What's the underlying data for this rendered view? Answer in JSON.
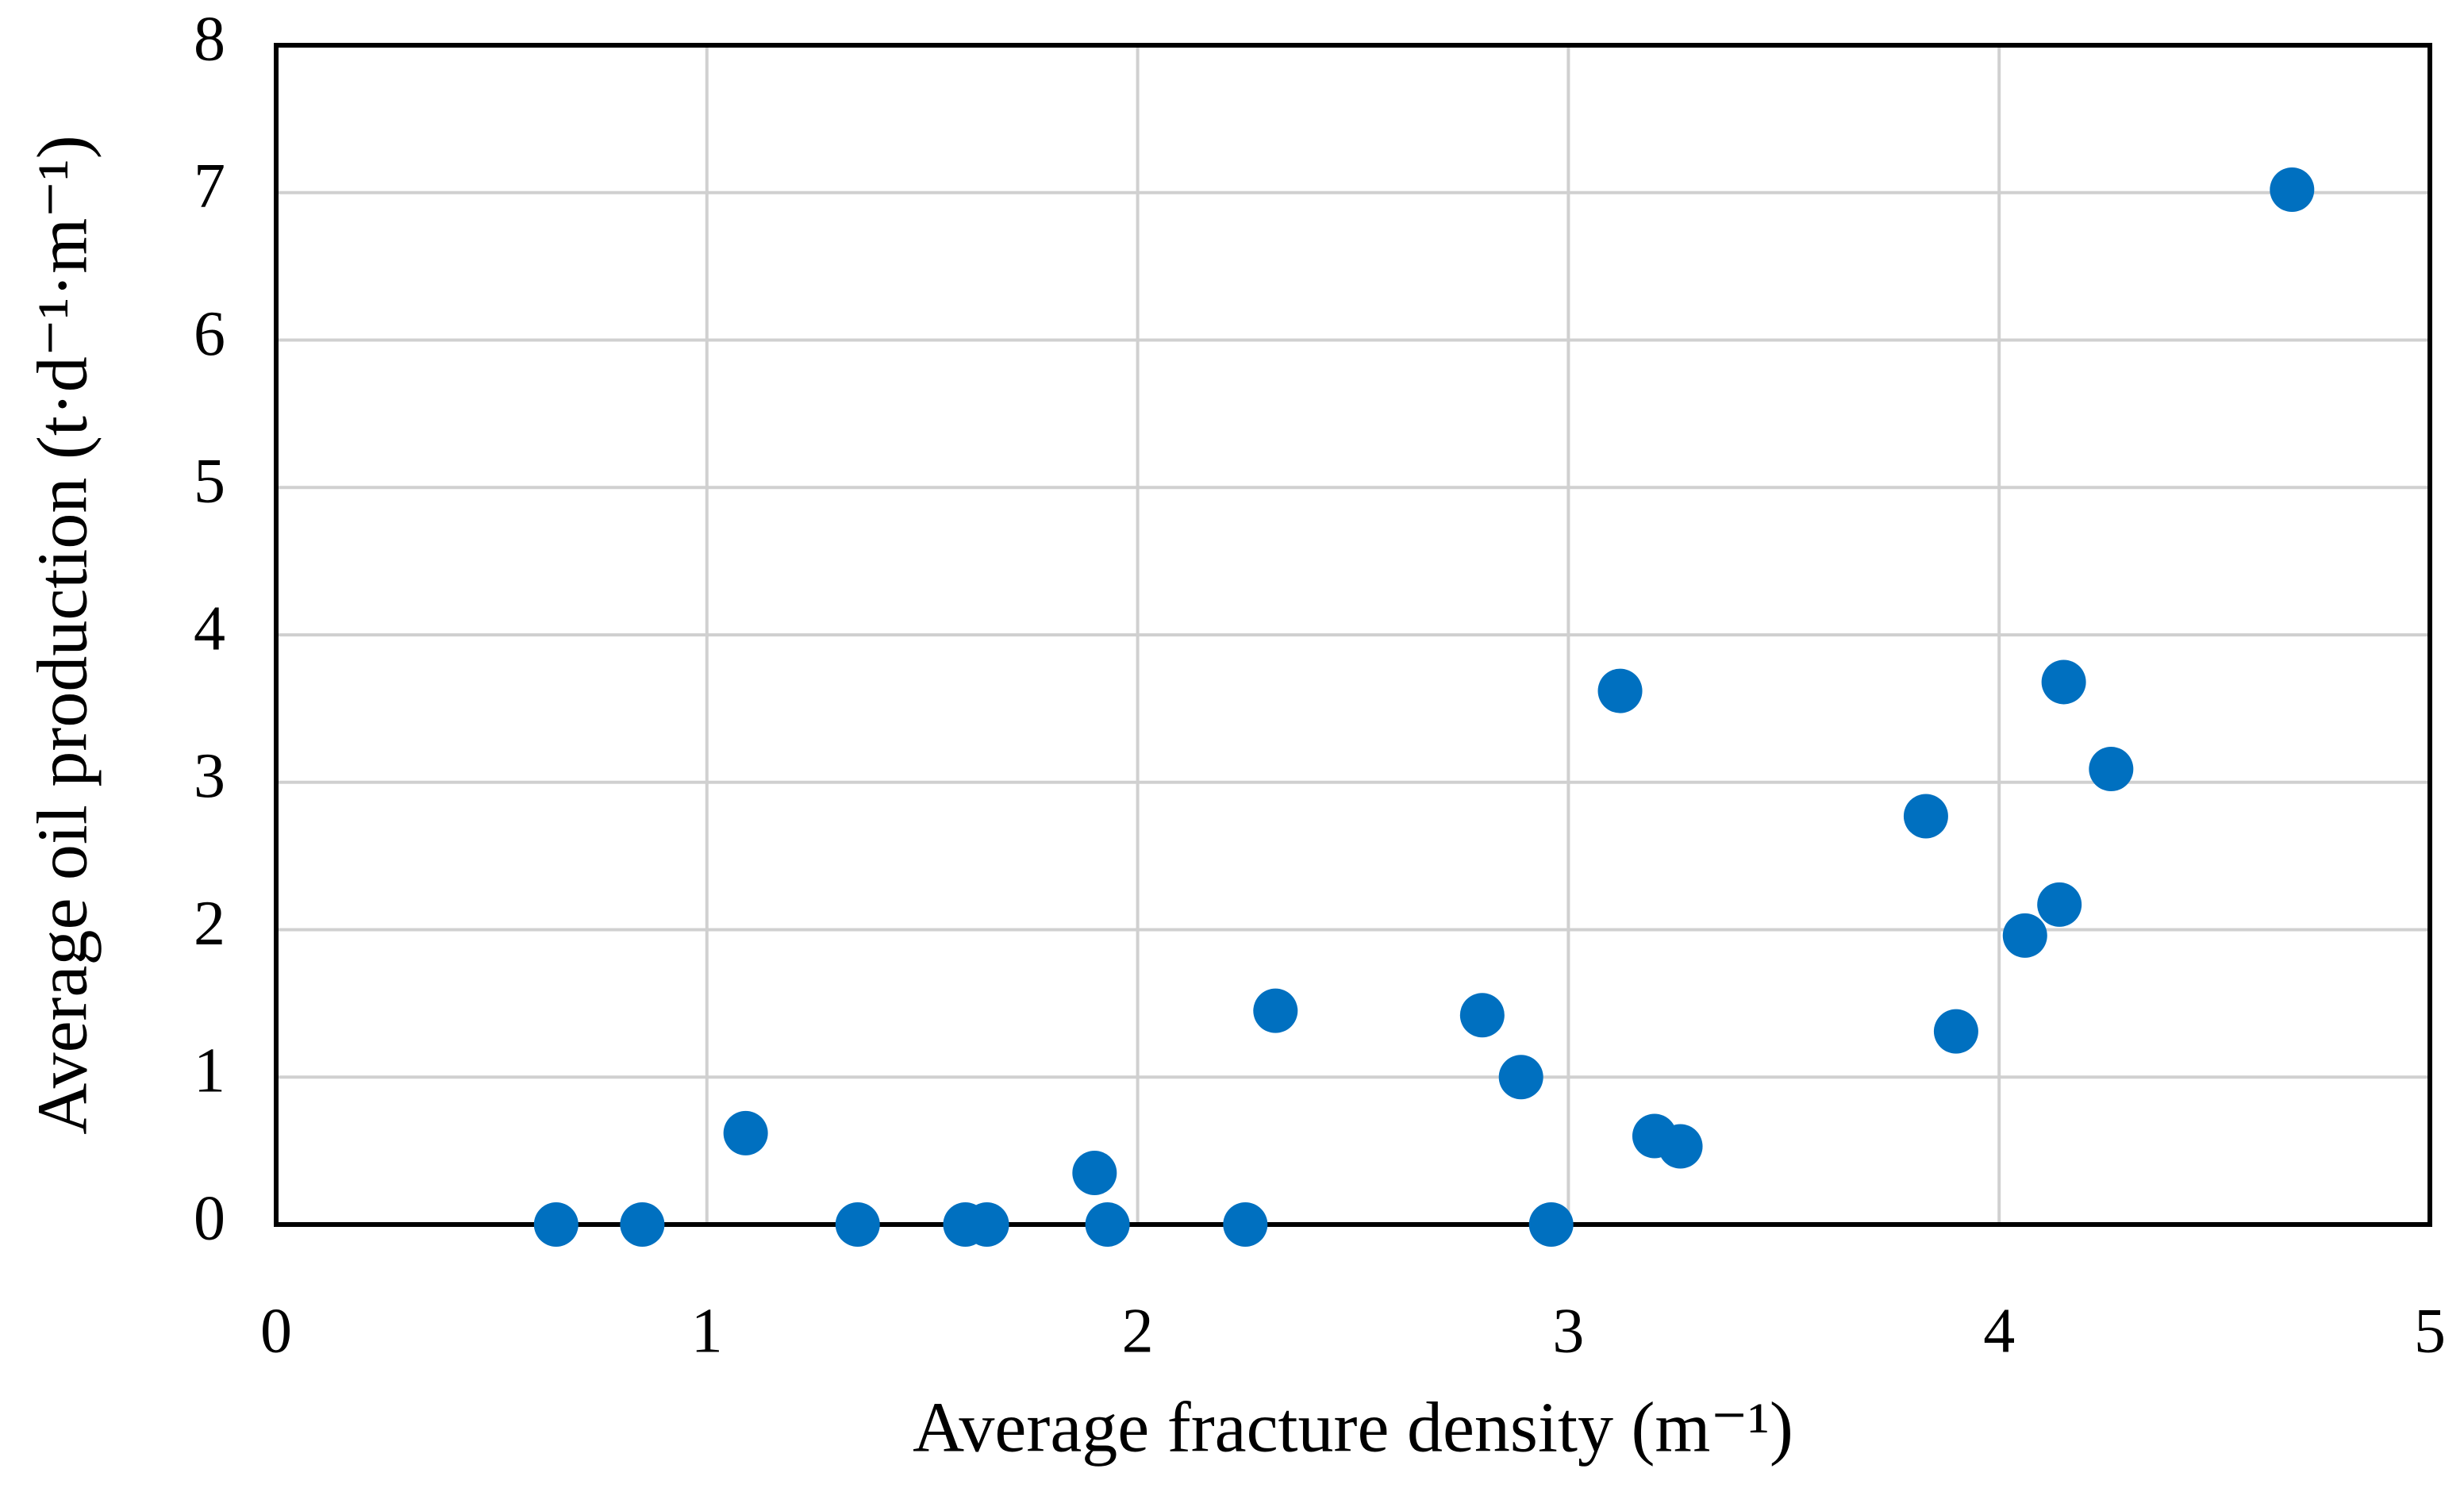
{
  "chart_data": {
    "type": "scatter",
    "x_label": "Average fracture density (m⁻¹)",
    "y_label": "Average oil production (t·d⁻¹·m⁻¹)",
    "series": [
      {
        "color": "#0070c0",
        "x": [
          0.65,
          0.85,
          1.09,
          1.35,
          1.6,
          1.65,
          1.9,
          1.93,
          2.25,
          2.32,
          2.8,
          2.89,
          2.96,
          3.12,
          3.2,
          3.26,
          3.83,
          3.9,
          4.06,
          4.14,
          4.15,
          4.26,
          4.68
        ],
        "values": [
          0,
          0,
          0.62,
          0,
          0,
          0,
          0.35,
          0,
          0,
          1.45,
          1.42,
          1.0,
          0,
          3.62,
          0.6,
          0.53,
          2.77,
          1.31,
          1.96,
          2.17,
          3.68,
          3.09,
          7.02
        ]
      }
    ],
    "xlim": [
      0,
      5
    ],
    "xticks": [
      0,
      1,
      2,
      3,
      4,
      5
    ],
    "ylim": [
      0,
      8
    ],
    "yticks": [
      0,
      1,
      2,
      3,
      4,
      5,
      6,
      7,
      8
    ],
    "grid": true
  }
}
